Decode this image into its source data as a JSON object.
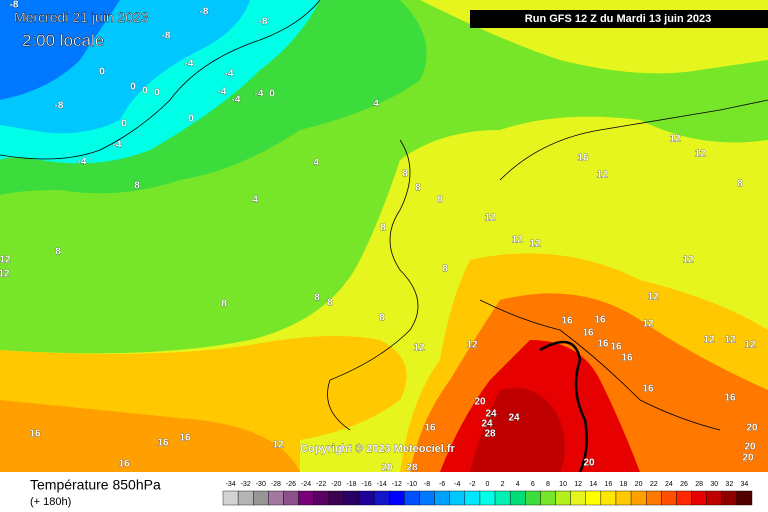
{
  "header": {
    "date": "Mercredi 21 juin 2023",
    "time": "2:00 locale",
    "run": "Run GFS 12 Z du Mardi 13 juin 2023"
  },
  "footer": {
    "copyright": "Copyright © 2023 Meteociel.fr"
  },
  "legend": {
    "title": "Température 850hPa",
    "lead": "(+ 180h)",
    "scale": {
      "ticks": [
        -34,
        -32,
        -30,
        -28,
        -26,
        -24,
        -22,
        -20,
        -18,
        -16,
        -14,
        -12,
        -10,
        -8,
        -6,
        -4,
        -2,
        0,
        2,
        4,
        6,
        8,
        10,
        12,
        14,
        16,
        18,
        20,
        22,
        24,
        26,
        28,
        30,
        32,
        34
      ],
      "colors": [
        "#d2d2d2",
        "#b4b4b4",
        "#969696",
        "#a078a0",
        "#8c508c",
        "#780078",
        "#5a0064",
        "#3c0050",
        "#280064",
        "#1e0096",
        "#1414c8",
        "#0000ff",
        "#0050ff",
        "#0078ff",
        "#00a0ff",
        "#00c8ff",
        "#00e6ff",
        "#00ffe6",
        "#00f0b4",
        "#00dc78",
        "#3cdc3c",
        "#78e628",
        "#b4f01e",
        "#e6f51e",
        "#ffff00",
        "#ffe600",
        "#ffc800",
        "#ffa000",
        "#ff7800",
        "#ff5000",
        "#ff2800",
        "#e60000",
        "#be0000",
        "#8c0000",
        "#500000"
      ]
    }
  },
  "map": {
    "contour_labels": [
      "-8",
      "-8",
      "-8",
      "-8",
      "0",
      "0",
      "0",
      "0",
      "-4",
      "-4",
      "-4",
      "-4",
      "-4",
      "0",
      "-8",
      "0",
      "0",
      "-4",
      "-4",
      "8",
      "4",
      "4",
      "4",
      "8",
      "8",
      "8",
      "8",
      "12",
      "12",
      "12",
      "16",
      "12",
      "12",
      "12",
      "8",
      "8",
      "12",
      "12",
      "8",
      "8",
      "8",
      "8",
      "8",
      "12",
      "12",
      "16",
      "16",
      "16",
      "16",
      "16",
      "16",
      "12",
      "12",
      "12",
      "12",
      "12",
      "12",
      "16",
      "16",
      "20",
      "24",
      "24",
      "24",
      "28",
      "16",
      "16",
      "16",
      "16",
      "16",
      "12",
      "20",
      "20",
      "28",
      "20",
      "20",
      "20"
    ]
  }
}
